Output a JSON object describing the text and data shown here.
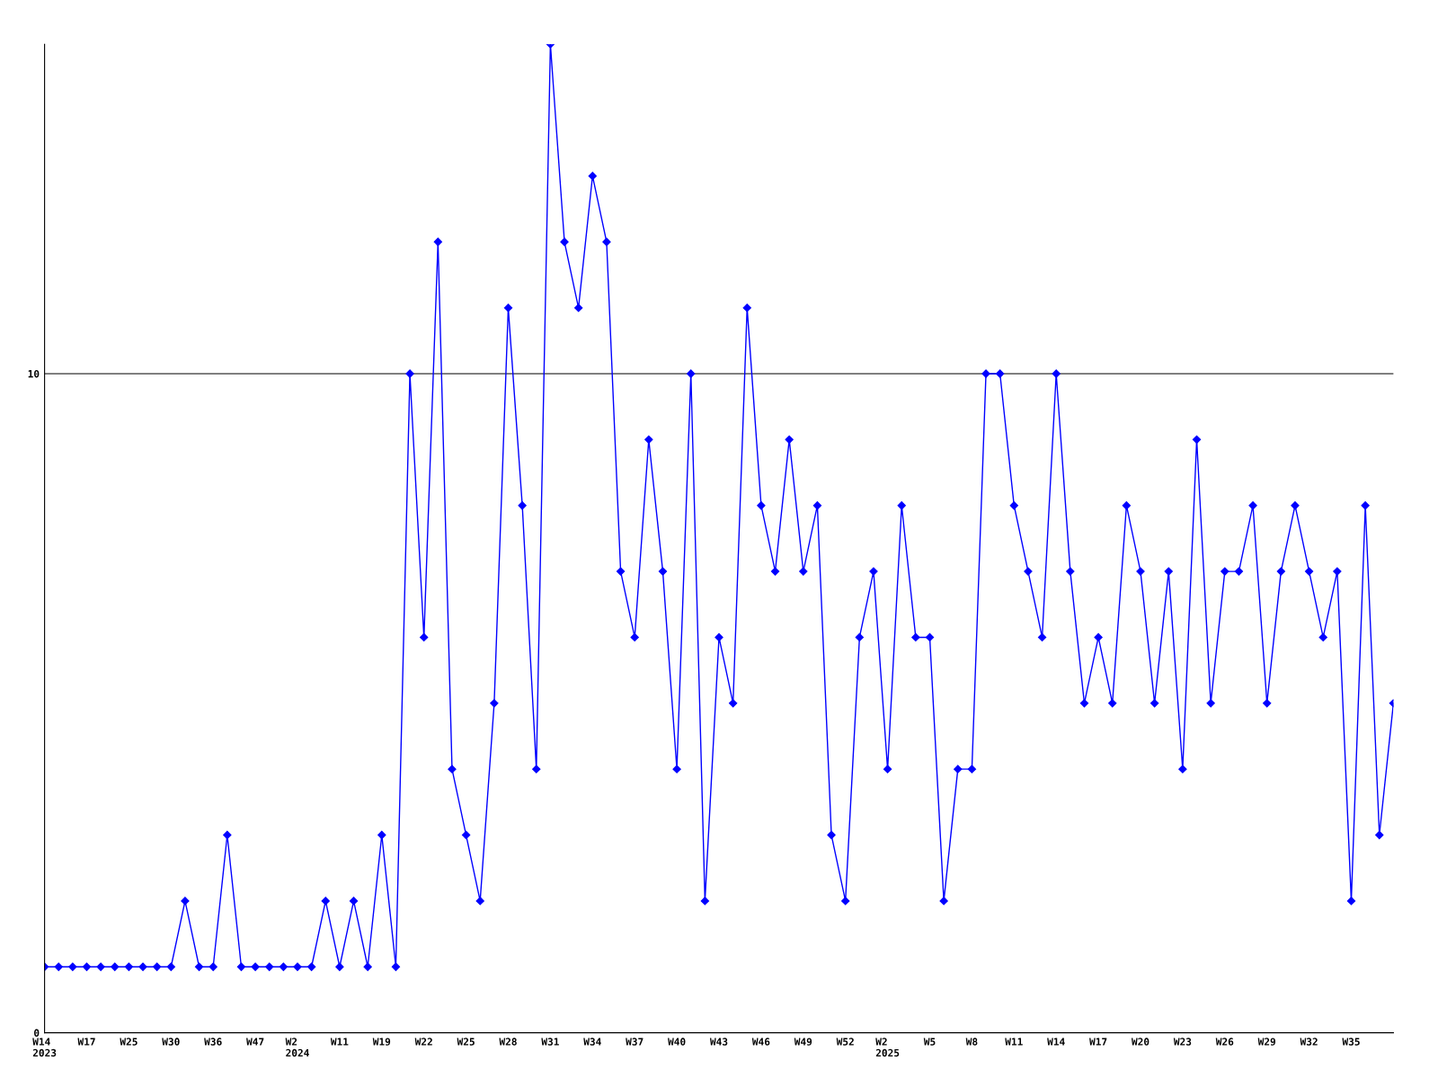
{
  "chart_data": {
    "type": "line",
    "categories": [
      "W14\n2023",
      null,
      null,
      "W17",
      null,
      null,
      "W25",
      null,
      null,
      "W30",
      null,
      null,
      "W36",
      null,
      null,
      "W47",
      null,
      null,
      "W2\n2024",
      null,
      null,
      "W11",
      null,
      null,
      "W19",
      null,
      null,
      "W22",
      null,
      null,
      "W25",
      null,
      null,
      "W28",
      null,
      null,
      "W31",
      null,
      null,
      "W34",
      null,
      null,
      "W37",
      null,
      null,
      "W40",
      null,
      null,
      "W43",
      null,
      null,
      "W46",
      null,
      null,
      "W49",
      null,
      null,
      "W52",
      null,
      null,
      "W2\n2025",
      null,
      null,
      "W5",
      null,
      null,
      "W8",
      null,
      null,
      "W11",
      null,
      null,
      "W14",
      null,
      null,
      "W17",
      null,
      null,
      "W20",
      null,
      null,
      "W23",
      null,
      null,
      "W26",
      null,
      null,
      "W29",
      null,
      null,
      "W32",
      null,
      null,
      "W35",
      null,
      null,
      null
    ],
    "series": [
      {
        "color": "#0000ff",
        "values": [
          1,
          1,
          1,
          1,
          1,
          1,
          1,
          1,
          1,
          1,
          2,
          1,
          1,
          3,
          1,
          1,
          1,
          1,
          1,
          1,
          2,
          1,
          2,
          1,
          3,
          1,
          10,
          6,
          12,
          4,
          3,
          2,
          5,
          11,
          8,
          4,
          15,
          12,
          11,
          13,
          12,
          7,
          6,
          9,
          7,
          4,
          10,
          2,
          6,
          5,
          11,
          8,
          7,
          9,
          7,
          8,
          3,
          2,
          6,
          7,
          4,
          8,
          6,
          6,
          2,
          4,
          4,
          10,
          10,
          8,
          7,
          6,
          10,
          7,
          5,
          6,
          5,
          8,
          7,
          5,
          7,
          4,
          9,
          5,
          7,
          7,
          8,
          5,
          7,
          8,
          7,
          6,
          7,
          2,
          8,
          3,
          5
        ]
      }
    ],
    "ylim": [
      0,
      15
    ],
    "yticks": [
      0,
      10
    ],
    "grid": "y",
    "marker": "diamond",
    "line_style": "solid",
    "legend": false
  }
}
